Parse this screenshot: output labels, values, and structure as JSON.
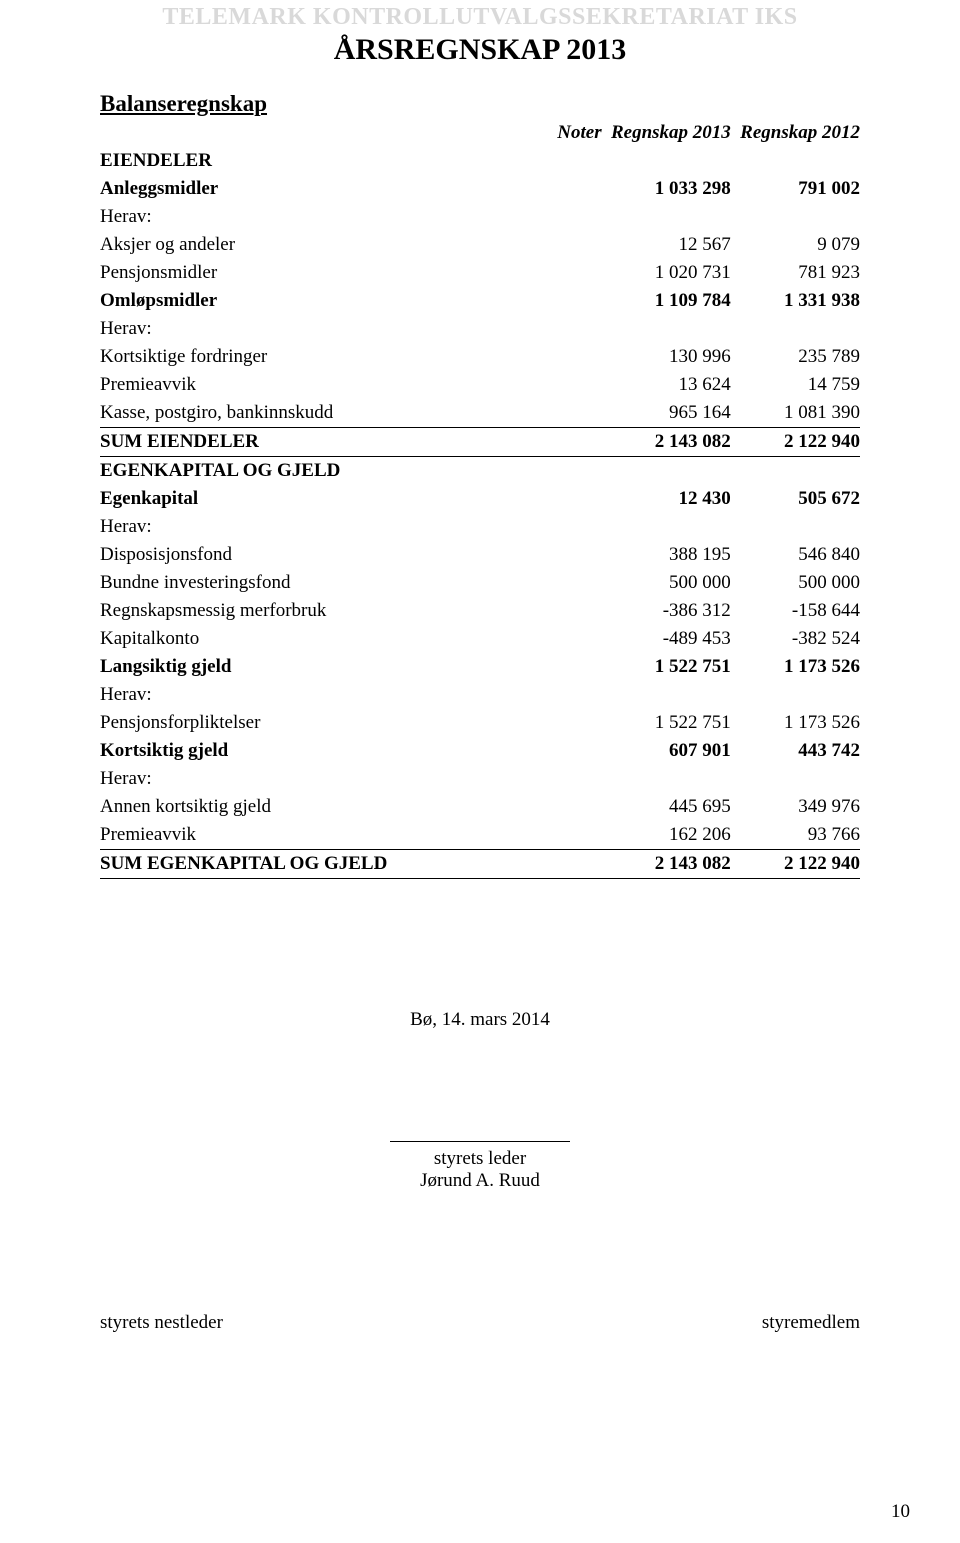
{
  "header": {
    "org": "TELEMARK KONTROLLUTVALGSSEKRETARIAT IKS",
    "title": "ÅRSREGNSKAP 2013"
  },
  "section_title": "Balanseregnskap",
  "columns": {
    "noter": "Noter",
    "c1": "Regnskap 2013",
    "c2": "Regnskap 2012"
  },
  "eiendeler": {
    "heading": "EIENDELER",
    "rows": [
      {
        "label": "Anleggsmidler",
        "c1": "1 033 298",
        "c2": "791 002",
        "bold": true
      },
      {
        "label": "Herav:",
        "c1": "",
        "c2": ""
      },
      {
        "label": "Aksjer og andeler",
        "c1": "12 567",
        "c2": "9 079"
      },
      {
        "label": "Pensjonsmidler",
        "c1": "1 020 731",
        "c2": "781 923"
      }
    ],
    "omlop": [
      {
        "label": "Omløpsmidler",
        "c1": "1 109 784",
        "c2": "1 331 938",
        "bold": true
      },
      {
        "label": "Herav:",
        "c1": "",
        "c2": ""
      },
      {
        "label": "Kortsiktige fordringer",
        "c1": "130 996",
        "c2": "235 789"
      },
      {
        "label": "Premieavvik",
        "c1": "13 624",
        "c2": "14 759"
      },
      {
        "label": "Kasse, postgiro, bankinnskudd",
        "c1": "965 164",
        "c2": "1 081 390"
      }
    ],
    "sum": {
      "label": "SUM EIENDELER",
      "c1": "2 143 082",
      "c2": "2 122 940"
    }
  },
  "egenkap": {
    "heading": "EGENKAPITAL OG GJELD",
    "egen": [
      {
        "label": "Egenkapital",
        "c1": "12 430",
        "c2": "505 672",
        "bold": true
      },
      {
        "label": "Herav:",
        "c1": "",
        "c2": ""
      },
      {
        "label": "Disposisjonsfond",
        "c1": "388 195",
        "c2": "546 840"
      },
      {
        "label": "Bundne investeringsfond",
        "c1": "500 000",
        "c2": "500 000"
      },
      {
        "label": "Regnskapsmessig merforbruk",
        "c1": "-386 312",
        "c2": "-158 644"
      },
      {
        "label": "Kapitalkonto",
        "c1": "-489 453",
        "c2": "-382 524"
      }
    ],
    "lang": [
      {
        "label": "Langsiktig gjeld",
        "c1": "1 522 751",
        "c2": "1 173 526",
        "bold": true
      },
      {
        "label": "Herav:",
        "c1": "",
        "c2": ""
      },
      {
        "label": "Pensjonsforpliktelser",
        "c1": "1 522 751",
        "c2": "1 173 526"
      }
    ],
    "kort": [
      {
        "label": "Kortsiktig gjeld",
        "c1": "607 901",
        "c2": "443 742",
        "bold": true
      },
      {
        "label": "Herav:",
        "c1": "",
        "c2": ""
      },
      {
        "label": "Annen kortsiktig gjeld",
        "c1": "445 695",
        "c2": "349 976"
      },
      {
        "label": "Premieavvik",
        "c1": "162 206",
        "c2": "93 766"
      }
    ],
    "sum": {
      "label": "SUM EGENKAPITAL OG GJELD",
      "c1": "2 143 082",
      "c2": "2 122 940"
    }
  },
  "signature": {
    "place_date": "Bø, 14. mars 2014",
    "leader_title": "styrets leder",
    "leader_name": "Jørund A. Ruud",
    "vice": "styrets nestleder",
    "member": "styremedlem"
  },
  "page_number": "10"
}
